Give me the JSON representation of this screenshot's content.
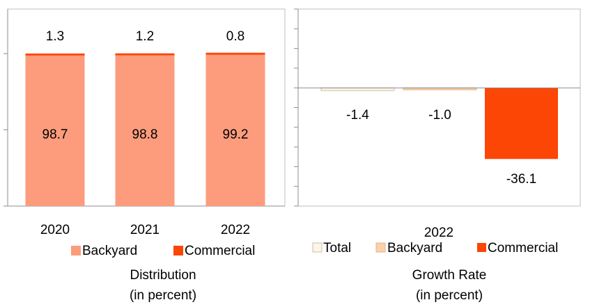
{
  "chart_data": [
    {
      "type": "bar",
      "stacked": true,
      "categories": [
        "2020",
        "2021",
        "2022"
      ],
      "series": [
        {
          "name": "Backyard",
          "values": [
            98.7,
            98.8,
            99.2
          ],
          "color": "#fc9c7d"
        },
        {
          "name": "Commercial",
          "values": [
            1.3,
            1.2,
            0.8
          ],
          "color": "#fb4605"
        }
      ],
      "data_labels": {
        "Backyard": [
          "98.7",
          "98.8",
          "99.2"
        ],
        "Commercial": [
          "1.3",
          "1.2",
          "0.8"
        ]
      },
      "title": "Distribution\n(in percent)",
      "title_lines": [
        "Distribution",
        "(in percent)"
      ],
      "legend": {
        "position": "bottom",
        "labels": [
          "Backyard",
          "Commercial"
        ]
      },
      "ylim": [
        0,
        100
      ],
      "y_tick_labels": false,
      "grid": false
    },
    {
      "type": "bar",
      "categories": [
        "2022"
      ],
      "series": [
        {
          "name": "Total",
          "values": [
            -1.4
          ],
          "color": "#fdf6e6"
        },
        {
          "name": "Backyard",
          "values": [
            -1.0
          ],
          "color": "#fbd1a9"
        },
        {
          "name": "Commercial",
          "values": [
            -36.1
          ],
          "color": "#fb4605"
        }
      ],
      "data_labels": [
        "-1.4",
        "-1.0",
        "-36.1"
      ],
      "title": "Growth Rate\n(in percent)",
      "title_lines": [
        "Growth Rate",
        "(in percent)"
      ],
      "legend": {
        "position": "bottom",
        "labels": [
          "Total",
          "Backyard",
          "Commercial"
        ]
      },
      "ylim": [
        -60,
        40
      ],
      "y_tick_labels": false,
      "grid": false
    }
  ]
}
